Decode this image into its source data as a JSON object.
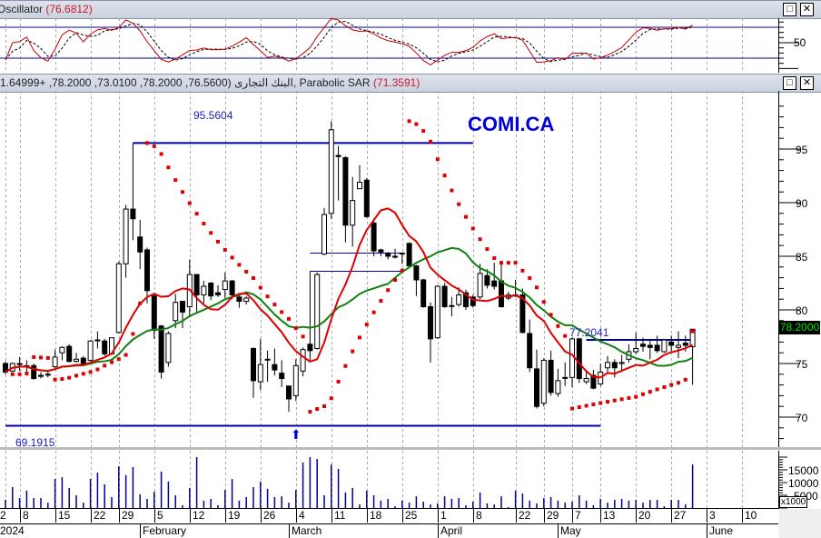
{
  "panels": {
    "oscillator": {
      "title": "Oscillator",
      "value": "(76.6812)",
      "levels": [
        80,
        20
      ],
      "axis_labels": [
        "50"
      ]
    },
    "price": {
      "title": "البنك التجارى",
      "ohlc_text": "(76.5600, 78.2000, 73.0100, 78.2000, +1.64999)",
      "sar_title": "Parabolic SAR",
      "sar_value": "(71.3591)",
      "last_price": "78.2000"
    },
    "volume": {
      "axis_labels": [
        "15000",
        "10000",
        "5000"
      ],
      "multiplier": "x1000"
    }
  },
  "window_buttons": {
    "maximize": "□",
    "close": "✕"
  },
  "symbol": "COMI.CA",
  "annotations": {
    "high_label": "95.5604",
    "low_label": "69.1915",
    "resistance_label": "77.2041",
    "arrow": "⬆"
  },
  "colors": {
    "symbol": "#0000dd",
    "lines": "#0000aa",
    "ma_fast": "#e00000",
    "ma_slow": "#108010",
    "sar": "#e00000",
    "volume": "#000090",
    "last_price_text": "#00e000"
  },
  "chart_data": {
    "type": "candlestick",
    "ylim": [
      67,
      99
    ],
    "yticks": [
      70,
      75,
      80,
      85,
      90,
      95
    ],
    "volume_ticks": [
      5000,
      10000,
      15000
    ],
    "oscillator_range": [
      0,
      100
    ],
    "grid": "vertical-dashed",
    "hlines": [
      {
        "value": 95.5604,
        "from": "2024-01-31",
        "to": "2024-04-08"
      },
      {
        "value": 69.1915,
        "from": "2024-01-02",
        "to": "2024-05-13"
      },
      {
        "value": 85.3,
        "from": "2024-03-06",
        "to": "2024-03-25"
      },
      {
        "value": 83.6,
        "from": "2024-03-06",
        "to": "2024-03-25"
      },
      {
        "value": 77.2041,
        "from": "2024-05-09",
        "to": "2024-05-30"
      }
    ],
    "arrow_date": "2024-03-04",
    "x_ticks": [
      {
        "label": "2",
        "date": "2024-01-02"
      },
      {
        "label": "8",
        "date": "2024-01-08"
      },
      {
        "label": "15",
        "date": "2024-01-15"
      },
      {
        "label": "22",
        "date": "2024-01-22"
      },
      {
        "label": "29",
        "date": "2024-01-29"
      },
      {
        "label": "5",
        "date": "2024-02-05"
      },
      {
        "label": "12",
        "date": "2024-02-12"
      },
      {
        "label": "19",
        "date": "2024-02-19"
      },
      {
        "label": "26",
        "date": "2024-02-26"
      },
      {
        "label": "4",
        "date": "2024-03-04"
      },
      {
        "label": "11",
        "date": "2024-03-11"
      },
      {
        "label": "18",
        "date": "2024-03-18"
      },
      {
        "label": "25",
        "date": "2024-03-25"
      },
      {
        "label": "1",
        "date": "2024-04-01"
      },
      {
        "label": "8",
        "date": "2024-04-08"
      },
      {
        "label": "22",
        "date": "2024-04-22"
      },
      {
        "label": "29",
        "date": "2024-04-29"
      },
      {
        "label": "7",
        "date": "2024-05-07"
      },
      {
        "label": "13",
        "date": "2024-05-13"
      },
      {
        "label": "20",
        "date": "2024-05-20"
      },
      {
        "label": "27",
        "date": "2024-05-27"
      },
      {
        "label": "3",
        "date": "2024-06-03"
      },
      {
        "label": "10",
        "date": "2024-06-10"
      }
    ],
    "month_ticks": [
      {
        "label": "2024",
        "date": "2024-01-02"
      },
      {
        "label": "February",
        "date": "2024-02-01"
      },
      {
        "label": "March",
        "date": "2024-03-01"
      },
      {
        "label": "April",
        "date": "2024-04-01"
      },
      {
        "label": "May",
        "date": "2024-05-01"
      },
      {
        "label": "June",
        "date": "2024-06-03"
      }
    ],
    "candle_fields": [
      "date",
      "open",
      "high",
      "low",
      "close",
      "volume_thousands"
    ],
    "candles": [
      [
        "2024-01-02",
        75.0,
        75.2,
        74.0,
        74.2,
        3.2
      ],
      [
        "2024-01-03",
        74.3,
        75.1,
        74.2,
        75.0,
        8.2
      ],
      [
        "2024-01-08",
        75.0,
        75.6,
        74.3,
        74.9,
        3.9
      ],
      [
        "2024-01-09",
        74.8,
        75.3,
        74.2,
        74.7,
        6.8
      ],
      [
        "2024-01-10",
        74.8,
        75.0,
        73.5,
        73.6,
        3.9
      ],
      [
        "2024-01-11",
        73.9,
        74.2,
        73.6,
        73.8,
        3.9
      ],
      [
        "2024-01-12",
        74.0,
        74.4,
        73.7,
        74.0,
        2.1
      ],
      [
        "2024-01-15",
        74.7,
        76.3,
        74.5,
        75.6,
        11.4
      ],
      [
        "2024-01-16",
        76.0,
        76.6,
        75.3,
        76.5,
        12.1
      ],
      [
        "2024-01-17",
        76.6,
        76.8,
        75.1,
        75.2,
        7.9
      ],
      [
        "2024-01-18",
        75.2,
        76.0,
        75.1,
        75.4,
        5.0
      ],
      [
        "2024-01-19",
        75.5,
        75.7,
        74.8,
        75.0,
        2.1
      ],
      [
        "2024-01-22",
        75.3,
        77.2,
        75.2,
        77.1,
        11.4
      ],
      [
        "2024-01-23",
        77.2,
        78.0,
        76.4,
        77.2,
        13.9
      ],
      [
        "2024-01-24",
        77.1,
        77.3,
        75.7,
        75.9,
        9.3
      ],
      [
        "2024-01-25",
        75.9,
        77.4,
        75.8,
        77.4,
        4.3
      ],
      [
        "2024-01-29",
        77.9,
        84.5,
        77.8,
        84.3,
        16.4
      ],
      [
        "2024-01-30",
        84.3,
        89.8,
        83.0,
        89.4,
        12.9
      ],
      [
        "2024-01-31",
        89.4,
        95.56,
        86.5,
        88.5,
        16.1
      ],
      [
        "2024-02-01",
        86.8,
        88.4,
        83.8,
        85.4,
        5.4
      ],
      [
        "2024-02-02",
        85.6,
        85.8,
        80.6,
        81.8,
        3.6
      ],
      [
        "2024-02-05",
        81.3,
        81.4,
        77.3,
        78.1,
        6.4
      ],
      [
        "2024-02-06",
        78.5,
        78.6,
        73.6,
        74.2,
        14.3
      ],
      [
        "2024-02-07",
        75.1,
        78.0,
        74.7,
        77.8,
        10.4
      ],
      [
        "2024-02-08",
        79.0,
        81.5,
        78.3,
        80.7,
        5.0
      ],
      [
        "2024-02-09",
        80.8,
        80.8,
        78.3,
        79.8,
        1.1
      ],
      [
        "2024-02-12",
        80.3,
        84.7,
        79.3,
        83.3,
        7.9
      ],
      [
        "2024-02-13",
        83.3,
        83.3,
        79.8,
        81.4,
        20.0
      ],
      [
        "2024-02-14",
        81.4,
        82.7,
        80.6,
        82.2,
        2.9
      ],
      [
        "2024-02-15",
        82.5,
        82.6,
        80.9,
        81.3,
        3.6
      ],
      [
        "2024-02-16",
        81.6,
        82.3,
        81.2,
        81.4,
        1.1
      ],
      [
        "2024-02-19",
        81.9,
        83.5,
        81.1,
        82.7,
        7.1
      ],
      [
        "2024-02-20",
        82.7,
        82.8,
        81.0,
        81.4,
        11.4
      ],
      [
        "2024-02-21",
        81.2,
        81.5,
        80.2,
        80.8,
        2.9
      ],
      [
        "2024-02-22",
        80.8,
        81.3,
        80.5,
        81.1,
        4.3
      ],
      [
        "2024-02-23",
        76.4,
        76.5,
        71.8,
        73.4,
        8.2
      ],
      [
        "2024-02-26",
        73.3,
        77.3,
        72.5,
        74.9,
        10.4
      ],
      [
        "2024-02-27",
        75.4,
        76.2,
        73.3,
        75.4,
        7.5
      ],
      [
        "2024-02-28",
        74.9,
        76.4,
        73.9,
        74.4,
        4.3
      ],
      [
        "2024-02-29",
        74.1,
        75.3,
        72.8,
        73.6,
        4.6
      ],
      [
        "2024-03-01",
        72.9,
        72.9,
        70.5,
        71.7,
        2.1
      ],
      [
        "2024-03-04",
        72.0,
        75.4,
        71.5,
        74.8,
        7.1
      ],
      [
        "2024-03-05",
        74.3,
        76.5,
        73.8,
        76.3,
        17.9
      ],
      [
        "2024-03-06",
        76.8,
        83.6,
        75.3,
        76.2,
        20.0
      ],
      [
        "2024-03-07",
        76.4,
        83.5,
        76.3,
        83.3,
        19.3
      ],
      [
        "2024-03-08",
        85.2,
        89.5,
        85.1,
        88.9,
        5.0
      ],
      [
        "2024-03-11",
        89.0,
        97.6,
        88.5,
        96.8,
        17.1
      ],
      [
        "2024-03-12",
        94.4,
        95.3,
        90.2,
        94.3,
        15.4
      ],
      [
        "2024-03-13",
        94.2,
        94.3,
        86.3,
        87.9,
        6.1
      ],
      [
        "2024-03-14",
        87.9,
        92.4,
        85.9,
        90.2,
        7.9
      ],
      [
        "2024-03-15",
        91.3,
        93.5,
        91.3,
        91.9,
        1.4
      ],
      [
        "2024-03-18",
        92.1,
        92.3,
        88.6,
        88.7,
        6.8
      ],
      [
        "2024-03-19",
        88.1,
        88.5,
        85.0,
        85.5,
        5.0
      ],
      [
        "2024-03-20",
        85.6,
        85.7,
        85.0,
        85.4,
        2.9
      ],
      [
        "2024-03-21",
        85.3,
        85.4,
        84.7,
        85.0,
        3.6
      ],
      [
        "2024-03-22",
        85.0,
        85.7,
        84.8,
        85.0,
        0.7
      ],
      [
        "2024-03-25",
        85.3,
        85.3,
        84.3,
        85.3,
        2.9
      ],
      [
        "2024-03-26",
        86.2,
        86.3,
        84.0,
        84.1,
        2.1
      ],
      [
        "2024-03-27",
        84.1,
        84.2,
        81.3,
        82.8,
        4.6
      ],
      [
        "2024-03-28",
        82.8,
        82.9,
        80.2,
        80.3,
        2.5
      ],
      [
        "2024-03-29",
        80.3,
        80.7,
        75.1,
        77.3,
        1.4
      ],
      [
        "2024-04-01",
        77.4,
        82.3,
        77.3,
        82.2,
        1.8
      ],
      [
        "2024-04-02",
        82.2,
        82.5,
        80.2,
        80.3,
        4.6
      ],
      [
        "2024-04-03",
        80.4,
        81.2,
        79.4,
        80.4,
        3.6
      ],
      [
        "2024-04-04",
        80.5,
        82.1,
        80.3,
        81.4,
        3.9
      ],
      [
        "2024-04-05",
        81.6,
        81.9,
        80.0,
        80.3,
        1.1
      ],
      [
        "2024-04-08",
        81.2,
        81.4,
        80.2,
        80.4,
        2.5
      ],
      [
        "2024-04-09",
        81.2,
        84.3,
        81.0,
        83.4,
        6.1
      ],
      [
        "2024-04-10",
        83.2,
        83.8,
        82.0,
        82.3,
        1.8
      ],
      [
        "2024-04-16",
        82.7,
        84.4,
        81.9,
        82.2,
        1.4
      ],
      [
        "2024-04-17",
        82.7,
        84.4,
        80.2,
        80.3,
        4.6
      ],
      [
        "2024-04-18",
        81.1,
        81.7,
        80.9,
        81.4,
        0.4
      ],
      [
        "2024-04-22",
        81.4,
        82.8,
        81.2,
        81.3,
        6.8
      ],
      [
        "2024-04-23",
        81.4,
        82.0,
        77.8,
        77.9,
        5.7
      ],
      [
        "2024-04-24",
        77.8,
        79.1,
        74.2,
        74.6,
        2.9
      ],
      [
        "2024-04-25",
        74.5,
        76.3,
        70.8,
        71.0,
        1.8
      ],
      [
        "2024-04-29",
        71.3,
        75.5,
        71.0,
        75.3,
        3.9
      ],
      [
        "2024-04-30",
        75.3,
        76.2,
        72.0,
        72.3,
        4.3
      ],
      [
        "2024-05-01",
        72.2,
        74.5,
        71.9,
        73.4,
        2.9
      ],
      [
        "2024-05-02",
        73.7,
        75.1,
        72.9,
        73.7,
        2.1
      ],
      [
        "2024-05-07",
        73.7,
        77.4,
        72.8,
        77.3,
        2.5
      ],
      [
        "2024-05-08",
        77.3,
        77.4,
        73.2,
        73.6,
        5.0
      ],
      [
        "2024-05-09",
        73.3,
        74.4,
        73.1,
        73.6,
        2.9
      ],
      [
        "2024-05-12",
        73.9,
        74.4,
        72.6,
        72.7,
        1.1
      ],
      [
        "2024-05-13",
        73.1,
        75.0,
        72.9,
        74.2,
        3.6
      ],
      [
        "2024-05-14",
        74.6,
        75.7,
        74.0,
        75.1,
        2.1
      ],
      [
        "2024-05-15",
        75.1,
        75.4,
        73.7,
        74.6,
        3.2
      ],
      [
        "2024-05-16",
        75.0,
        75.8,
        74.2,
        75.1,
        3.6
      ],
      [
        "2024-05-19",
        75.4,
        76.8,
        75.1,
        76.1,
        2.9
      ],
      [
        "2024-05-20",
        76.1,
        77.9,
        75.9,
        76.4,
        3.2
      ],
      [
        "2024-05-21",
        76.8,
        77.4,
        76.1,
        76.6,
        2.1
      ],
      [
        "2024-05-22",
        76.7,
        77.3,
        75.4,
        76.5,
        3.2
      ],
      [
        "2024-05-23",
        76.7,
        77.6,
        76.0,
        76.2,
        3.2
      ],
      [
        "2024-05-26",
        76.1,
        77.3,
        76.0,
        77.2,
        0.7
      ],
      [
        "2024-05-27",
        77.0,
        77.6,
        76.0,
        76.7,
        3.2
      ],
      [
        "2024-05-28",
        76.5,
        78.0,
        75.5,
        76.7,
        3.2
      ],
      [
        "2024-05-29",
        76.9,
        77.6,
        76.1,
        76.7,
        1.4
      ],
      [
        "2024-05-30",
        76.56,
        78.2,
        73.01,
        78.2,
        17.1
      ]
    ]
  }
}
